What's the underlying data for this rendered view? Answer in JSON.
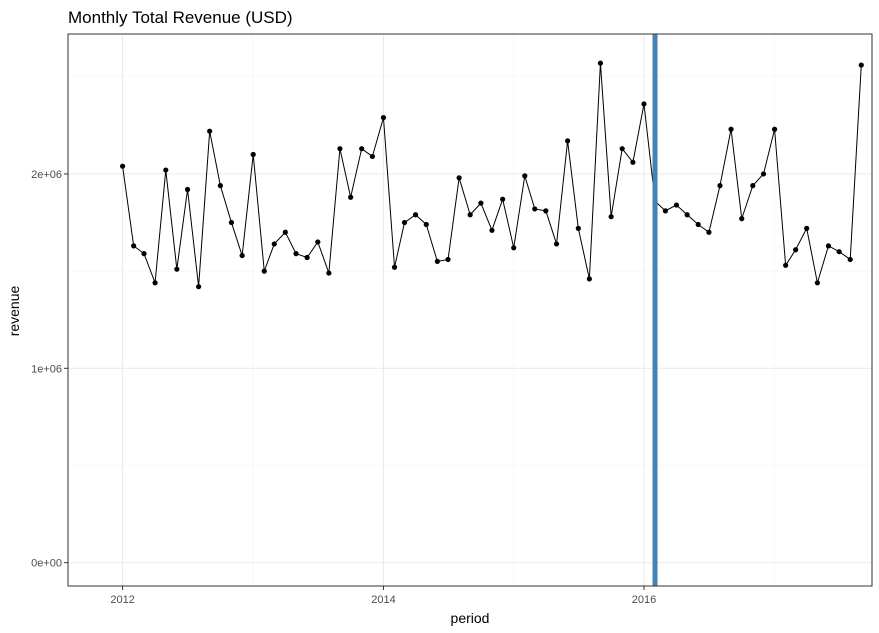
{
  "chart_data": {
    "type": "line",
    "title": "Monthly Total Revenue (USD)",
    "xlabel": "period",
    "ylabel": "revenue",
    "xlim": [
      "2011-08-01",
      "2017-10-01"
    ],
    "ylim": [
      -120000,
      2720000
    ],
    "grid": true,
    "x_ticks": [
      "2012",
      "2014",
      "2016"
    ],
    "x_tick_dates": [
      "2012-01-01",
      "2014-01-01",
      "2016-01-01"
    ],
    "y_ticks": [
      0,
      1000000,
      2000000
    ],
    "y_tick_labels": [
      "0e+00",
      "1e+06",
      "2e+06"
    ],
    "series": [
      {
        "x": [
          "2012-01",
          "2012-02",
          "2012-03",
          "2012-04",
          "2012-05",
          "2012-06",
          "2012-07",
          "2012-08",
          "2012-09",
          "2012-10",
          "2012-11",
          "2012-12",
          "2013-01",
          "2013-02",
          "2013-03",
          "2013-04",
          "2013-05",
          "2013-06",
          "2013-07",
          "2013-08",
          "2013-09",
          "2013-10",
          "2013-11",
          "2013-12",
          "2014-01",
          "2014-02",
          "2014-03",
          "2014-04",
          "2014-05",
          "2014-06",
          "2014-07",
          "2014-08",
          "2014-09",
          "2014-10",
          "2014-11",
          "2014-12",
          "2015-01",
          "2015-02",
          "2015-03",
          "2015-04",
          "2015-05",
          "2015-06",
          "2015-07",
          "2015-08",
          "2015-09",
          "2015-10",
          "2015-11",
          "2015-12",
          "2016-01",
          "2016-02",
          "2016-03",
          "2016-04",
          "2016-05",
          "2016-06",
          "2016-07",
          "2016-08",
          "2016-09",
          "2016-10",
          "2016-11",
          "2016-12",
          "2017-01",
          "2017-02",
          "2017-03",
          "2017-04",
          "2017-05",
          "2017-06",
          "2017-07",
          "2017-08",
          "2017-09"
        ],
        "values": [
          2040000,
          1630000,
          1590000,
          1440000,
          2020000,
          1510000,
          1920000,
          1420000,
          2220000,
          1940000,
          1750000,
          1580000,
          2100000,
          1500000,
          1640000,
          1700000,
          1590000,
          1570000,
          1650000,
          1490000,
          2130000,
          1880000,
          2130000,
          2090000,
          2290000,
          1520000,
          1750000,
          1790000,
          1740000,
          1550000,
          1560000,
          1980000,
          1790000,
          1850000,
          1710000,
          1870000,
          1620000,
          1990000,
          1820000,
          1810000,
          1640000,
          2170000,
          1720000,
          1460000,
          2570000,
          1780000,
          2130000,
          2060000,
          2360000,
          1860000,
          1810000,
          1840000,
          1790000,
          1740000,
          1700000,
          1940000,
          2230000,
          1770000,
          1940000,
          2000000,
          2230000,
          1530000,
          1610000,
          1720000,
          1440000,
          1630000,
          1600000,
          1560000,
          2560000
        ]
      }
    ],
    "annotations": [
      {
        "type": "vline",
        "x": "2016-02-01",
        "color": "#4682b4"
      }
    ]
  }
}
